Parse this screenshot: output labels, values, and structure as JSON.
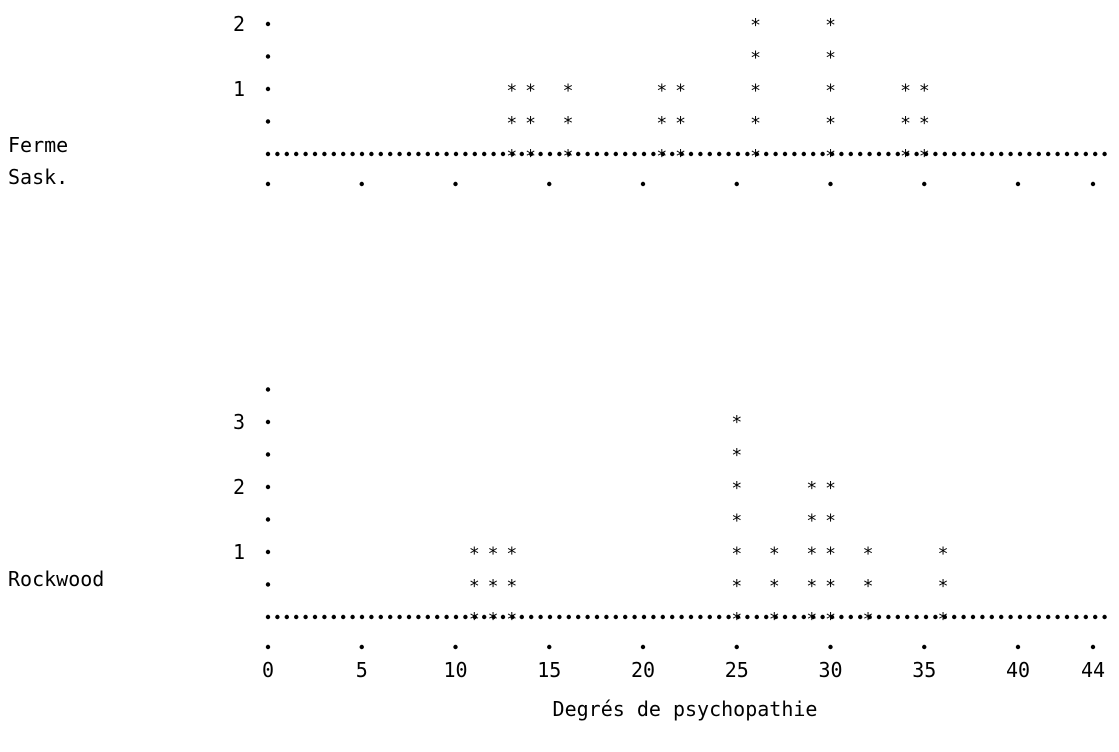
{
  "chart_data": {
    "type": "dot-plot",
    "xlabel": "Degrés de psychopathie",
    "x_ticks": [
      0,
      5,
      10,
      15,
      20,
      25,
      30,
      35,
      40,
      44
    ],
    "xlim": [
      0,
      44
    ],
    "panels": [
      {
        "name_lines": [
          "Ferme",
          "Sask."
        ],
        "y_ticks": [
          1,
          2
        ],
        "ylim": [
          0,
          2.5
        ],
        "points": [
          {
            "x": 13,
            "stack": 3
          },
          {
            "x": 14,
            "stack": 3
          },
          {
            "x": 16,
            "stack": 3
          },
          {
            "x": 21,
            "stack": 3
          },
          {
            "x": 22,
            "stack": 3
          },
          {
            "x": 26,
            "stack": 5
          },
          {
            "x": 30,
            "stack": 5
          },
          {
            "x": 34,
            "stack": 3
          },
          {
            "x": 35,
            "stack": 3
          }
        ]
      },
      {
        "name_lines": [
          "Rockwood"
        ],
        "y_ticks": [
          1,
          2,
          3
        ],
        "ylim": [
          0,
          3.5
        ],
        "points": [
          {
            "x": 11,
            "stack": 3
          },
          {
            "x": 12,
            "stack": 3
          },
          {
            "x": 13,
            "stack": 3
          },
          {
            "x": 25,
            "stack": 7
          },
          {
            "x": 27,
            "stack": 3
          },
          {
            "x": 29,
            "stack": 5
          },
          {
            "x": 30,
            "stack": 5
          },
          {
            "x": 32,
            "stack": 3
          },
          {
            "x": 36,
            "stack": 3
          }
        ]
      }
    ]
  }
}
